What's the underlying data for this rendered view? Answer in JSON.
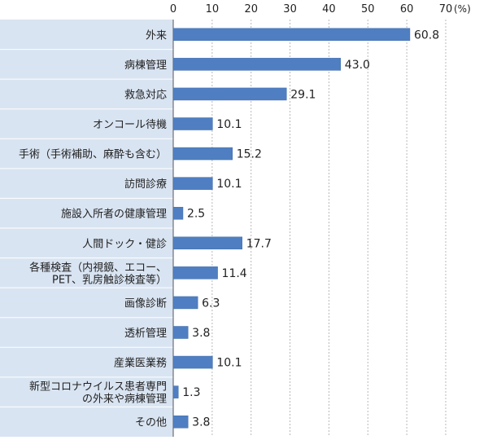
{
  "chart_data": {
    "type": "bar",
    "orientation": "horizontal",
    "title": "",
    "xlabel": "",
    "ylabel": "",
    "unit": "(%)",
    "xlim": [
      0,
      70
    ],
    "xticks": [
      0,
      10,
      20,
      30,
      40,
      50,
      60,
      70
    ],
    "grid": true,
    "categories": [
      "外来",
      "病棟管理",
      "救急対応",
      "オンコール待機",
      "手術（手術補助、麻酔も含む）",
      "訪問診療",
      "施設入所者の健康管理",
      "人間ドック・健診",
      [
        "各種検査（内視鏡、エコー、",
        "PET、乳房触診検査等）"
      ],
      "画像診断",
      "透析管理",
      "産業医業務",
      [
        "新型コロナウイルス患者専門",
        "の外来や病棟管理"
      ],
      "その他"
    ],
    "values": [
      60.8,
      43.0,
      29.1,
      10.1,
      15.2,
      10.1,
      2.5,
      17.7,
      11.4,
      6.3,
      3.8,
      10.1,
      1.3,
      3.8
    ],
    "value_labels": [
      "60.8",
      "43.0",
      "29.1",
      "10.1",
      "15.2",
      "10.1",
      "2.5",
      "17.7",
      "11.4",
      "6.3",
      "3.8",
      "10.1",
      "1.3",
      "3.8"
    ],
    "colors": {
      "bar": "#4f7fc2",
      "bar_edge": "#3d6aa8",
      "label_panel": "#d9e4f2",
      "row_divider": "#ffffff",
      "grid": "#b8b8b8",
      "axis": "#555555"
    }
  }
}
